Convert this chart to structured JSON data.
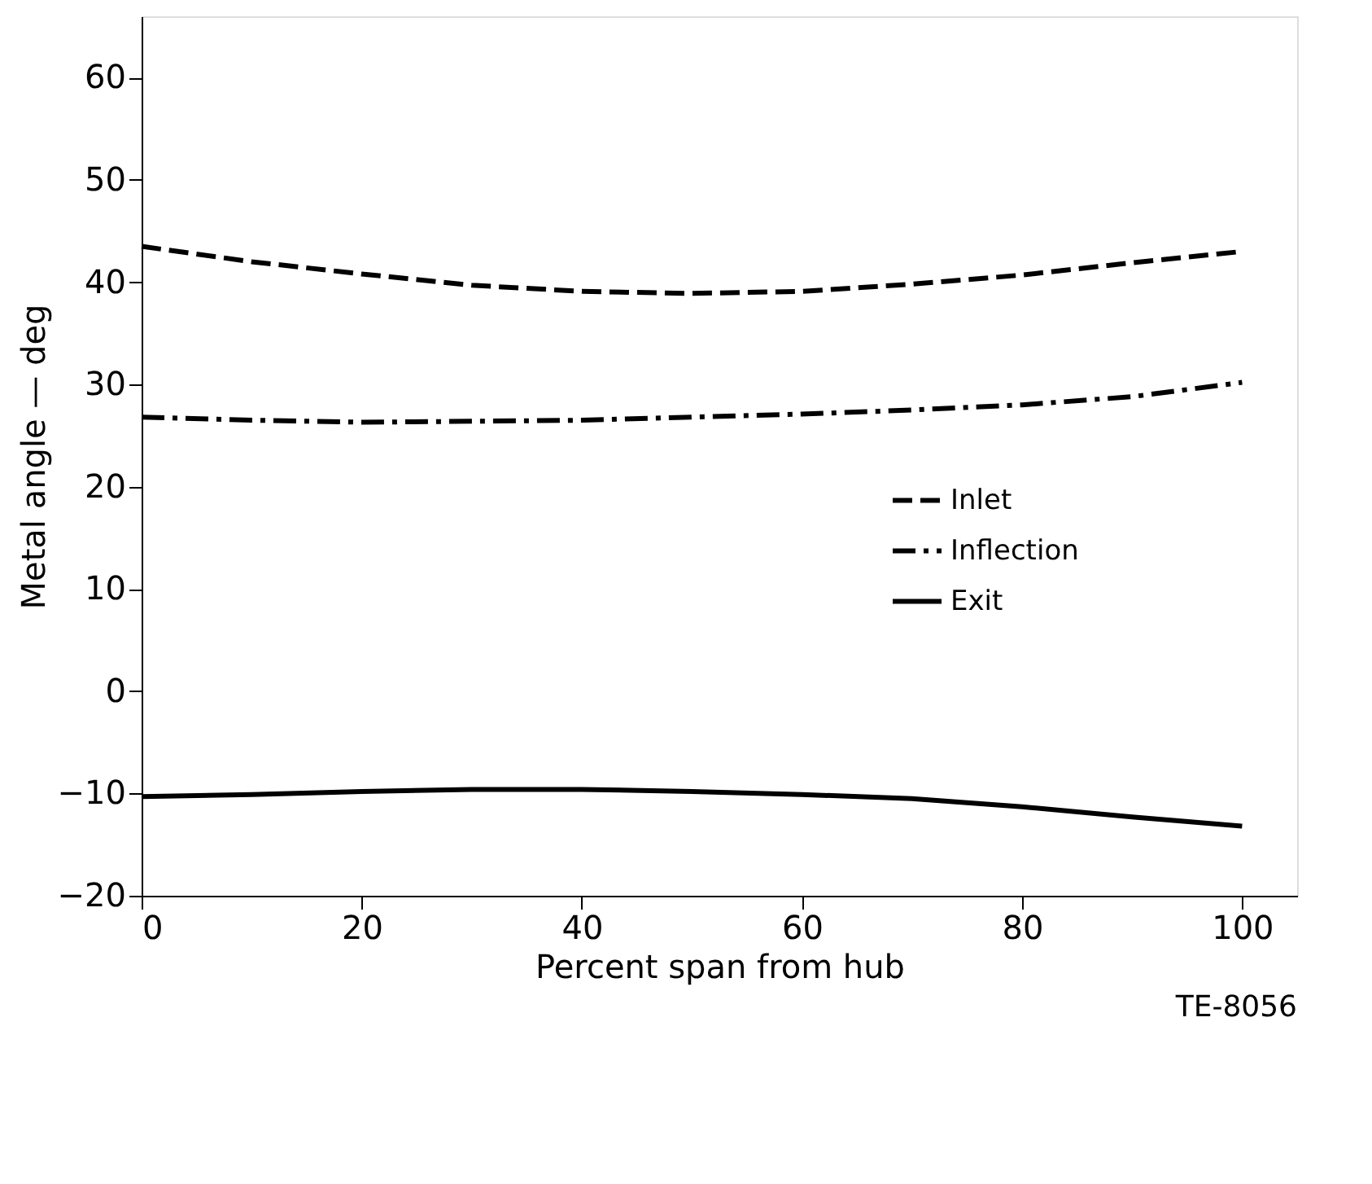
{
  "chart_data": {
    "type": "line",
    "xlabel": "Percent span from hub",
    "ylabel": "Metal angle — deg",
    "x": [
      0,
      10,
      20,
      30,
      40,
      50,
      60,
      70,
      80,
      90,
      100
    ],
    "series": [
      {
        "name": "Inlet",
        "color": "#000000",
        "line_style": "dashed",
        "values": [
          43.5,
          42,
          40.8,
          39.7,
          39.1,
          38.9,
          39.1,
          39.8,
          40.7,
          41.9,
          43
        ]
      },
      {
        "name": "Inflection",
        "color": "#000000",
        "line_style": "dashdot",
        "values": [
          26.8,
          26.5,
          26.3,
          26.4,
          26.5,
          26.8,
          27.1,
          27.5,
          28,
          28.8,
          30.2
        ]
      },
      {
        "name": "Exit",
        "color": "#000000",
        "line_style": "solid",
        "values": [
          -10.3,
          -10.1,
          -9.8,
          -9.6,
          -9.6,
          -9.8,
          -10.1,
          -10.5,
          -11.3,
          -12.3,
          -13.2
        ]
      }
    ],
    "xlim": [
      0,
      105
    ],
    "ylim": [
      -20,
      66
    ],
    "xticks": [
      0,
      20,
      40,
      60,
      80,
      100
    ],
    "yticks": [
      -20,
      -10,
      0,
      10,
      20,
      30,
      40,
      50,
      60
    ],
    "grid": false,
    "legend": "right",
    "marker": "none",
    "annotations": [
      "TE-8056"
    ]
  }
}
